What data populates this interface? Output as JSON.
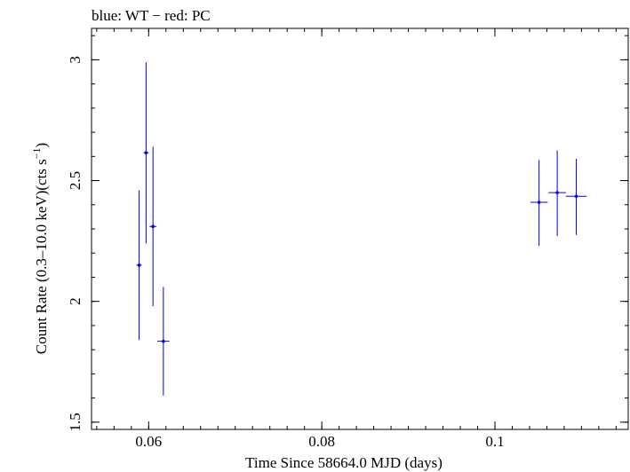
{
  "chart_data": {
    "type": "scatter",
    "title": "blue: WT − red: PC",
    "xlabel": "Time Since 58664.0 MJD (days)",
    "ylabel_main": "Count Rate (0.3–10.0 keV)(cts s",
    "ylabel_sup": "−1",
    "ylabel_close": ")",
    "xlim": [
      0.0534,
      0.1154
    ],
    "ylim": [
      1.47,
      3.13
    ],
    "xticks": [
      {
        "value": 0.06,
        "label": "0.06"
      },
      {
        "value": 0.08,
        "label": "0.08"
      },
      {
        "value": 0.1,
        "label": "0.1"
      }
    ],
    "yticks": [
      {
        "value": 1.5,
        "label": "1.5"
      },
      {
        "value": 2,
        "label": "2"
      },
      {
        "value": 2.5,
        "label": "2.5"
      },
      {
        "value": 3,
        "label": "3"
      }
    ],
    "xminor_step": 0.002,
    "yminor_step": 0.1,
    "series": [
      {
        "name": "WT",
        "color": "#0000ee",
        "points": [
          {
            "x": 0.0589,
            "y": 2.15,
            "xerr": 0.0003,
            "ylo": 1.84,
            "yhi": 2.46
          },
          {
            "x": 0.0597,
            "y": 2.615,
            "xerr": 0.0003,
            "ylo": 2.24,
            "yhi": 2.99
          },
          {
            "x": 0.0605,
            "y": 2.31,
            "xerr": 0.0004,
            "ylo": 1.98,
            "yhi": 2.64
          },
          {
            "x": 0.0617,
            "y": 1.835,
            "xerr": 0.0007,
            "ylo": 1.61,
            "yhi": 2.06
          },
          {
            "x": 0.1051,
            "y": 2.41,
            "xerr": 0.001,
            "ylo": 2.23,
            "yhi": 2.585
          },
          {
            "x": 0.1072,
            "y": 2.45,
            "xerr": 0.001,
            "ylo": 2.27,
            "yhi": 2.625
          },
          {
            "x": 0.1094,
            "y": 2.435,
            "xerr": 0.0012,
            "ylo": 2.275,
            "yhi": 2.59
          }
        ]
      }
    ]
  }
}
